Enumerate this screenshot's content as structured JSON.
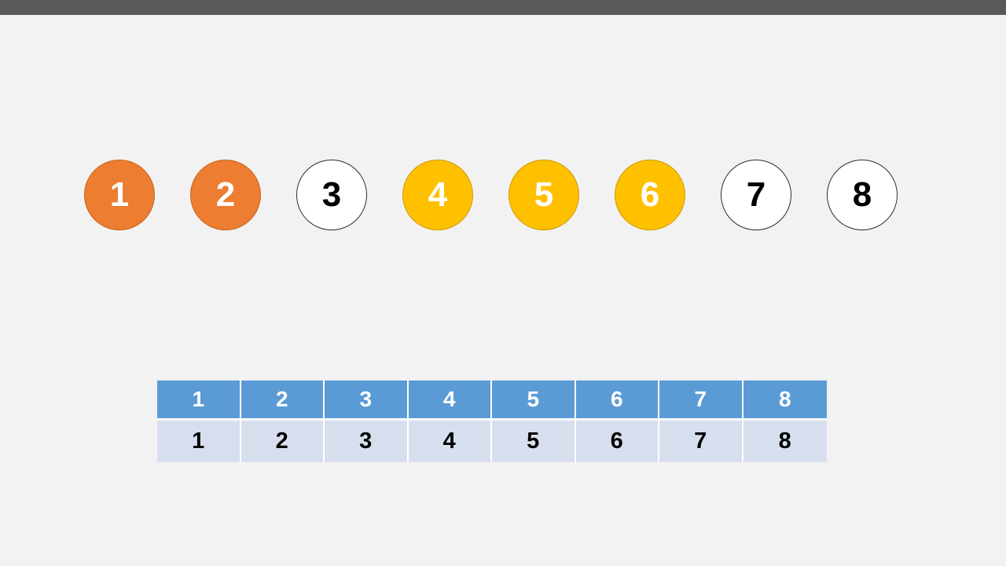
{
  "slide": {
    "background_color": "#F2F2F2",
    "top_bar_color": "#595959"
  },
  "circles": [
    {
      "label": "1",
      "fill": "#ED7D31",
      "border": "#C8641F",
      "text_color": "#FFFFFF"
    },
    {
      "label": "2",
      "fill": "#ED7D31",
      "border": "#C8641F",
      "text_color": "#FFFFFF"
    },
    {
      "label": "3",
      "fill": "#FFFFFF",
      "border": "#2E2E2E",
      "text_color": "#000000"
    },
    {
      "label": "4",
      "fill": "#FFC000",
      "border": "#CE9A00",
      "text_color": "#FFFFFF"
    },
    {
      "label": "5",
      "fill": "#FFC000",
      "border": "#CE9A00",
      "text_color": "#FFFFFF"
    },
    {
      "label": "6",
      "fill": "#FFC000",
      "border": "#CE9A00",
      "text_color": "#FFFFFF"
    },
    {
      "label": "7",
      "fill": "#FFFFFF",
      "border": "#2E2E2E",
      "text_color": "#000000"
    },
    {
      "label": "8",
      "fill": "#FFFFFF",
      "border": "#2E2E2E",
      "text_color": "#000000"
    }
  ],
  "table": {
    "header_fill": "#5B9BD5",
    "header_text_color": "#FFFFFF",
    "body_fill": "#D7DFEF",
    "body_text_color": "#000000",
    "divider_color": "#FFFFFF",
    "header_cells": [
      "1",
      "2",
      "3",
      "4",
      "5",
      "6",
      "7",
      "8"
    ],
    "body_cells": [
      "1",
      "2",
      "3",
      "4",
      "5",
      "6",
      "7",
      "8"
    ]
  }
}
